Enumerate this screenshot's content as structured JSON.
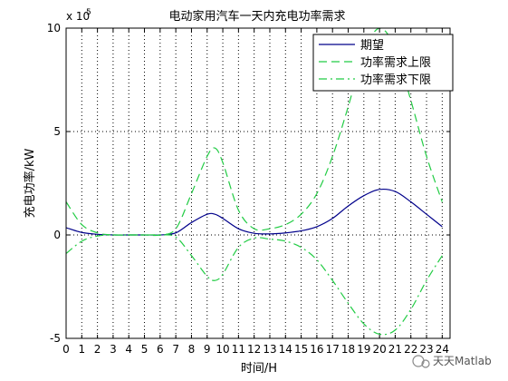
{
  "chart_data": {
    "type": "line",
    "title": "电动家用汽车一天内充电功率需求",
    "xlabel": "时间/H",
    "ylabel": "充电功率/kW",
    "y_exponent_label": "x 10",
    "y_exponent_power": "5",
    "xlim": [
      0,
      24.5
    ],
    "ylim": [
      -5,
      10
    ],
    "x_ticks": [
      "0",
      "1",
      "2",
      "3",
      "4",
      "5",
      "6",
      "7",
      "8",
      "9",
      "10",
      "11",
      "12",
      "13",
      "14",
      "15",
      "16",
      "17",
      "18",
      "19",
      "20",
      "21",
      "22",
      "23",
      "24"
    ],
    "y_ticks": [
      "-5",
      "0",
      "5",
      "10"
    ],
    "grid": "dotted",
    "legend_position": "top-right",
    "x": [
      0,
      1,
      2,
      3,
      4,
      5,
      6,
      7,
      8,
      9,
      9.5,
      10,
      11,
      12,
      13,
      14,
      15,
      16,
      17,
      18,
      19,
      20,
      21,
      22,
      23,
      24
    ],
    "series": [
      {
        "name": "期望",
        "color": "#00008b",
        "style": "solid",
        "values": [
          0.35,
          0.12,
          0.03,
          0.0,
          0.0,
          0.0,
          0.0,
          0.1,
          0.6,
          1.0,
          1.0,
          0.8,
          0.3,
          0.08,
          0.05,
          0.1,
          0.2,
          0.4,
          0.8,
          1.4,
          1.9,
          2.2,
          2.1,
          1.6,
          1.0,
          0.4
        ]
      },
      {
        "name": "功率需求上限",
        "color": "#22cc44",
        "style": "dashed",
        "values": [
          1.6,
          0.5,
          0.1,
          0.0,
          0.0,
          0.0,
          0.0,
          0.3,
          2.0,
          3.8,
          4.2,
          3.5,
          1.2,
          0.3,
          0.3,
          0.5,
          1.0,
          2.0,
          3.8,
          6.2,
          8.8,
          10.0,
          9.0,
          6.5,
          3.8,
          1.6
        ]
      },
      {
        "name": "功率需求下限",
        "color": "#22cc44",
        "style": "dashdot",
        "values": [
          -0.9,
          -0.3,
          -0.05,
          0.0,
          0.0,
          0.0,
          0.0,
          -0.1,
          -1.0,
          -2.0,
          -2.2,
          -1.9,
          -0.6,
          -0.15,
          -0.2,
          -0.3,
          -0.6,
          -1.2,
          -2.2,
          -3.3,
          -4.3,
          -4.8,
          -4.6,
          -3.6,
          -2.2,
          -1.0
        ]
      }
    ]
  },
  "watermark": {
    "text": "天天Matlab"
  }
}
